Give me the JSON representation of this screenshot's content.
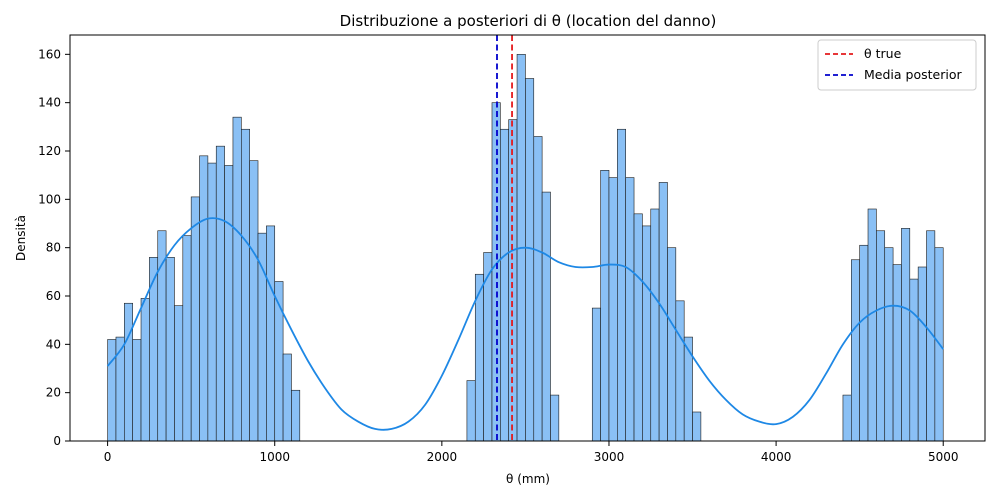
{
  "chart_data": {
    "type": "bar",
    "title": "Distribuzione a posteriori di θ (location del danno)",
    "xlabel": "θ (mm)",
    "ylabel": "Densità",
    "xlim": [
      -225,
      5250
    ],
    "ylim": [
      0,
      168
    ],
    "xticks": [
      0,
      1000,
      2000,
      3000,
      4000,
      5000
    ],
    "yticks": [
      0,
      20,
      40,
      60,
      80,
      100,
      120,
      140,
      160
    ],
    "grid": false,
    "legend_position": "top-right",
    "colors": {
      "bar_fill": "#8ac0f5",
      "bar_edge": "#1a1a1a",
      "kde": "#1e88e5",
      "theta_true": "#e41a1c",
      "posterior_mean": "#0000cc"
    },
    "histogram": {
      "bin_width": 50,
      "bins": [
        {
          "x0": 0,
          "count": 42
        },
        {
          "x0": 50,
          "count": 43
        },
        {
          "x0": 100,
          "count": 57
        },
        {
          "x0": 150,
          "count": 42
        },
        {
          "x0": 200,
          "count": 59
        },
        {
          "x0": 250,
          "count": 76
        },
        {
          "x0": 300,
          "count": 87
        },
        {
          "x0": 350,
          "count": 76
        },
        {
          "x0": 400,
          "count": 56
        },
        {
          "x0": 450,
          "count": 85
        },
        {
          "x0": 500,
          "count": 101
        },
        {
          "x0": 550,
          "count": 118
        },
        {
          "x0": 600,
          "count": 115
        },
        {
          "x0": 650,
          "count": 122
        },
        {
          "x0": 700,
          "count": 114
        },
        {
          "x0": 750,
          "count": 134
        },
        {
          "x0": 800,
          "count": 129
        },
        {
          "x0": 850,
          "count": 116
        },
        {
          "x0": 900,
          "count": 86
        },
        {
          "x0": 950,
          "count": 89
        },
        {
          "x0": 1000,
          "count": 66
        },
        {
          "x0": 1050,
          "count": 36
        },
        {
          "x0": 1100,
          "count": 21
        },
        {
          "x0": 2150,
          "count": 25
        },
        {
          "x0": 2200,
          "count": 69
        },
        {
          "x0": 2250,
          "count": 78
        },
        {
          "x0": 2300,
          "count": 140
        },
        {
          "x0": 2350,
          "count": 129
        },
        {
          "x0": 2400,
          "count": 133
        },
        {
          "x0": 2450,
          "count": 160
        },
        {
          "x0": 2500,
          "count": 150
        },
        {
          "x0": 2550,
          "count": 126
        },
        {
          "x0": 2600,
          "count": 103
        },
        {
          "x0": 2650,
          "count": 19
        },
        {
          "x0": 2900,
          "count": 55
        },
        {
          "x0": 2950,
          "count": 112
        },
        {
          "x0": 3000,
          "count": 109
        },
        {
          "x0": 3050,
          "count": 129
        },
        {
          "x0": 3100,
          "count": 109
        },
        {
          "x0": 3150,
          "count": 94
        },
        {
          "x0": 3200,
          "count": 89
        },
        {
          "x0": 3250,
          "count": 96
        },
        {
          "x0": 3300,
          "count": 107
        },
        {
          "x0": 3350,
          "count": 80
        },
        {
          "x0": 3400,
          "count": 58
        },
        {
          "x0": 3450,
          "count": 43
        },
        {
          "x0": 3500,
          "count": 12
        },
        {
          "x0": 4400,
          "count": 19
        },
        {
          "x0": 4450,
          "count": 75
        },
        {
          "x0": 4500,
          "count": 81
        },
        {
          "x0": 4550,
          "count": 96
        },
        {
          "x0": 4600,
          "count": 87
        },
        {
          "x0": 4650,
          "count": 80
        },
        {
          "x0": 4700,
          "count": 73
        },
        {
          "x0": 4750,
          "count": 88
        },
        {
          "x0": 4800,
          "count": 67
        },
        {
          "x0": 4850,
          "count": 72
        },
        {
          "x0": 4900,
          "count": 87
        },
        {
          "x0": 4950,
          "count": 80
        }
      ]
    },
    "kde": {
      "x": [
        0,
        100,
        200,
        300,
        400,
        500,
        600,
        700,
        800,
        900,
        1000,
        1100,
        1200,
        1300,
        1400,
        1500,
        1600,
        1700,
        1800,
        1900,
        2000,
        2100,
        2200,
        2300,
        2400,
        2500,
        2600,
        2700,
        2800,
        2900,
        3000,
        3100,
        3200,
        3300,
        3400,
        3500,
        3600,
        3700,
        3800,
        3900,
        4000,
        4100,
        4200,
        4300,
        4400,
        4500,
        4600,
        4700,
        4800,
        4900,
        5000
      ],
      "y": [
        31,
        40,
        55,
        70,
        81,
        88,
        92,
        91,
        85,
        75,
        60,
        46,
        33,
        22,
        13,
        8,
        5,
        5,
        8,
        15,
        27,
        42,
        58,
        71,
        78,
        80,
        78,
        74,
        72,
        72,
        73,
        72,
        66,
        57,
        46,
        35,
        25,
        17,
        11,
        8,
        7,
        10,
        17,
        28,
        40,
        49,
        54,
        56,
        54,
        47,
        38
      ]
    },
    "vlines": [
      {
        "label": "θ true",
        "x": 2420,
        "style": "dashed"
      },
      {
        "label": "Media posterior",
        "x": 2330,
        "style": "dashed"
      }
    ],
    "legend": [
      "θ true",
      "Media posterior"
    ]
  }
}
